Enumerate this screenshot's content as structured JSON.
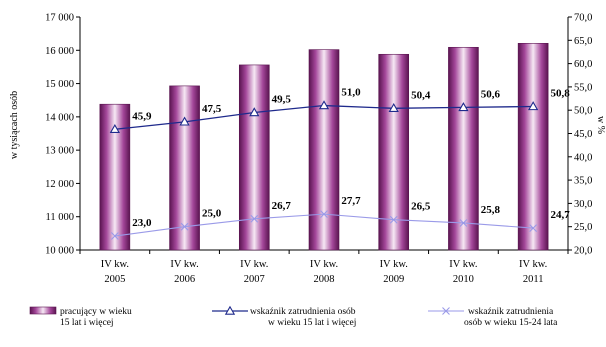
{
  "chart_data": {
    "type": "bar+line",
    "categories": [
      [
        "IV kw.",
        "2005"
      ],
      [
        "IV kw.",
        "2006"
      ],
      [
        "IV kw.",
        "2007"
      ],
      [
        "IV kw.",
        "2008"
      ],
      [
        "IV kw.",
        "2009"
      ],
      [
        "IV kw.",
        "2010"
      ],
      [
        "IV kw.",
        "2011"
      ]
    ],
    "ylabel_left": "w tysiącach osób",
    "ylabel_right": "w %",
    "ylim_left": [
      10000,
      17000
    ],
    "yticks_left": [
      10000,
      11000,
      12000,
      13000,
      14000,
      15000,
      16000,
      17000
    ],
    "ytick_labels_left": [
      "10 000",
      "11 000",
      "12 000",
      "13 000",
      "14 000",
      "15 000",
      "16 000",
      "17 000"
    ],
    "ylim_right": [
      20,
      70
    ],
    "yticks_right": [
      20,
      25,
      30,
      35,
      40,
      45,
      50,
      55,
      60,
      65,
      70
    ],
    "ytick_labels_right": [
      "20,0",
      "25,0",
      "30,0",
      "35,0",
      "40,0",
      "45,0",
      "50,0",
      "55,0",
      "60,0",
      "65,0",
      "70,0"
    ],
    "grid": false,
    "series": [
      {
        "name_lines": [
          "pracujący w wieku",
          "15 lat i więcej"
        ],
        "type": "bar",
        "axis": "left",
        "color": "#8B2F7F",
        "values": [
          14380,
          14930,
          15560,
          16020,
          15880,
          16090,
          16210
        ]
      },
      {
        "name_lines": [
          "wskaźnik zatrudnienia osób",
          "w wieku 15 lat i więcej"
        ],
        "type": "line",
        "axis": "right",
        "marker": "triangle",
        "color": "#1F2A8C",
        "values": [
          45.9,
          47.5,
          49.5,
          51.0,
          50.4,
          50.6,
          50.8
        ],
        "labels": [
          "45,9",
          "47,5",
          "49,5",
          "51,0",
          "50,4",
          "50,6",
          "50,8"
        ]
      },
      {
        "name_lines": [
          "wskaźnik zatrudnienia",
          "osób w wieku 15-24 lata"
        ],
        "type": "line",
        "axis": "right",
        "marker": "x",
        "color": "#9A9AE8",
        "values": [
          23.0,
          25.0,
          26.7,
          27.7,
          26.5,
          25.8,
          24.7
        ],
        "labels": [
          "23,0",
          "25,0",
          "26,7",
          "27,7",
          "26,5",
          "25,8",
          "24,7"
        ]
      }
    ],
    "legend_position": "bottom"
  }
}
